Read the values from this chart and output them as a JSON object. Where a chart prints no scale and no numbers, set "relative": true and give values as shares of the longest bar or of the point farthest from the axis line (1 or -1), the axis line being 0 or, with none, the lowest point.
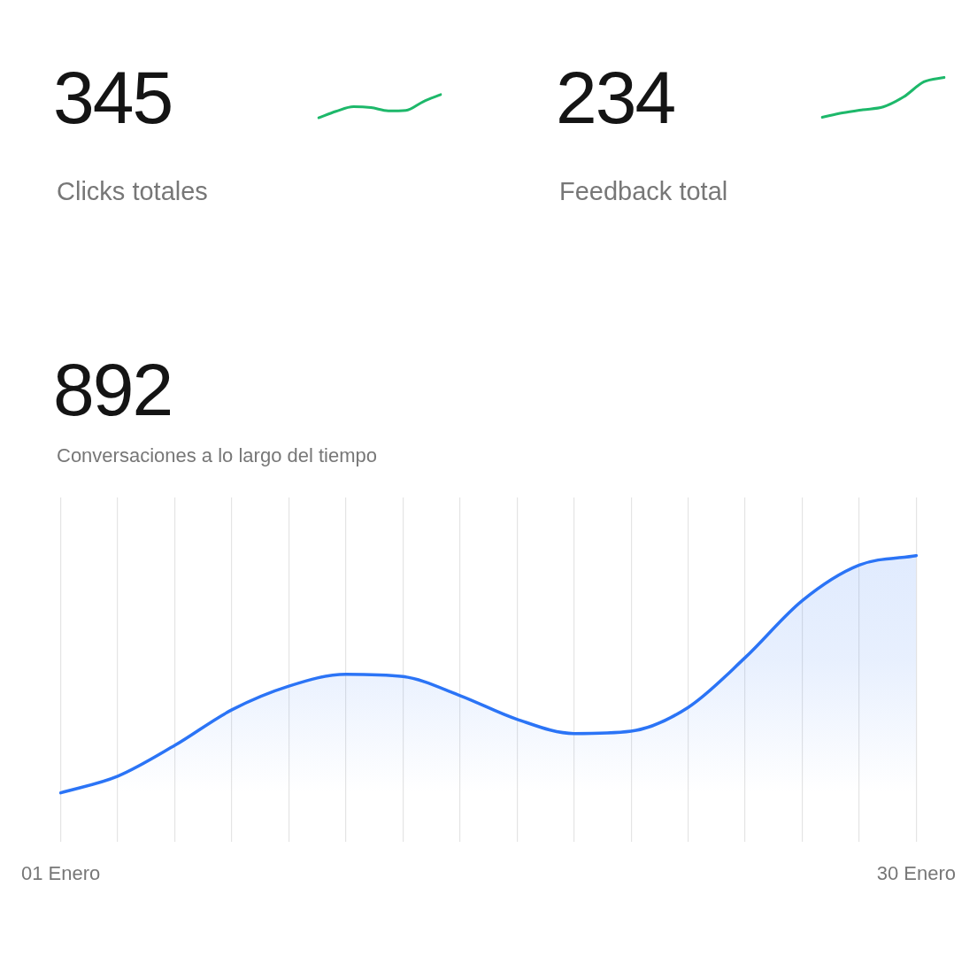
{
  "chart_data": [
    {
      "type": "line",
      "title": "345",
      "subtitle": "Clicks totales",
      "categories": [
        null,
        null,
        null,
        null,
        null,
        null,
        null,
        null
      ],
      "relative": true,
      "tick_labels": false,
      "grid": false,
      "marker": "none",
      "series": [
        {
          "color": "#1db86a",
          "values": [
            0,
            0.28,
            0.48,
            0.44,
            0.3,
            0.32,
            0.7,
            1
          ]
        }
      ]
    },
    {
      "type": "line",
      "title": "234",
      "subtitle": "Feedback total",
      "categories": [
        null,
        null,
        null,
        null,
        null,
        null,
        null
      ],
      "relative": true,
      "tick_labels": false,
      "grid": false,
      "marker": "none",
      "series": [
        {
          "color": "#1db86a",
          "values": [
            0,
            0.11,
            0.19,
            0.26,
            0.51,
            0.89,
            1
          ]
        }
      ]
    },
    {
      "type": "area",
      "title": "892",
      "subtitle": "Conversaciones a lo largo del tiempo",
      "categories": [
        "01 Enero",
        null,
        null,
        null,
        null,
        null,
        null,
        null,
        null,
        null,
        null,
        null,
        null,
        null,
        null,
        "30 Enero"
      ],
      "relative": true,
      "tick_labels": "x",
      "grid": "x",
      "marker": "none",
      "series": [
        {
          "color": "#2b74f6",
          "values": [
            0,
            0.07,
            0.2,
            0.35,
            0.45,
            0.5,
            0.49,
            0.41,
            0.31,
            0.25,
            0.26,
            0.36,
            0.57,
            0.81,
            0.96,
            1
          ]
        }
      ]
    }
  ]
}
